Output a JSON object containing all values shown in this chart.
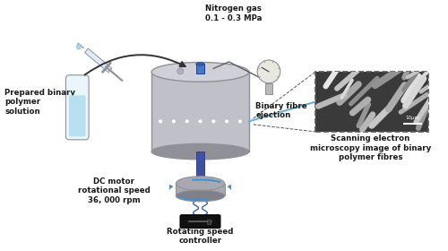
{
  "bg_color": "#ffffff",
  "fig_width": 5.0,
  "fig_height": 2.8,
  "dpi": 100,
  "labels": {
    "nitrogen": "Nitrogen gas\n0.1 - 0.3 MPa",
    "prepared": "Prepared binary\npolymer\nsolution",
    "binary_fibre": "Binary fibre\nejection",
    "dc_motor": "DC motor\nrotational speed\n36, 000 rpm",
    "rotating": "Rotating speed\ncontroller",
    "sem": "Scanning electron\nmicroscopy image of binary\npolymer fibres"
  },
  "colors": {
    "cylinder_body": "#c0c0c8",
    "cylinder_top": "#d0d0d8",
    "cylinder_dark": "#909098",
    "shaft": "#4050a0",
    "motor": "#a8a8b0",
    "motor_dark": "#808088",
    "controller": "#111111",
    "tube_liquid": "#b8dff0",
    "tube_glass": "#eaf6fc",
    "fibre_line": "#6aaedc",
    "arrow": "#333333",
    "rotation_arrow": "#4090d0",
    "sem_border": "#555555",
    "text": "#1a1a1a",
    "dot_white": "#ffffff",
    "blue_cap": "#4878c0",
    "pressure_gauge": "#b8b8b8",
    "wire_color": "#4060b0",
    "pipe_color": "#606068"
  }
}
